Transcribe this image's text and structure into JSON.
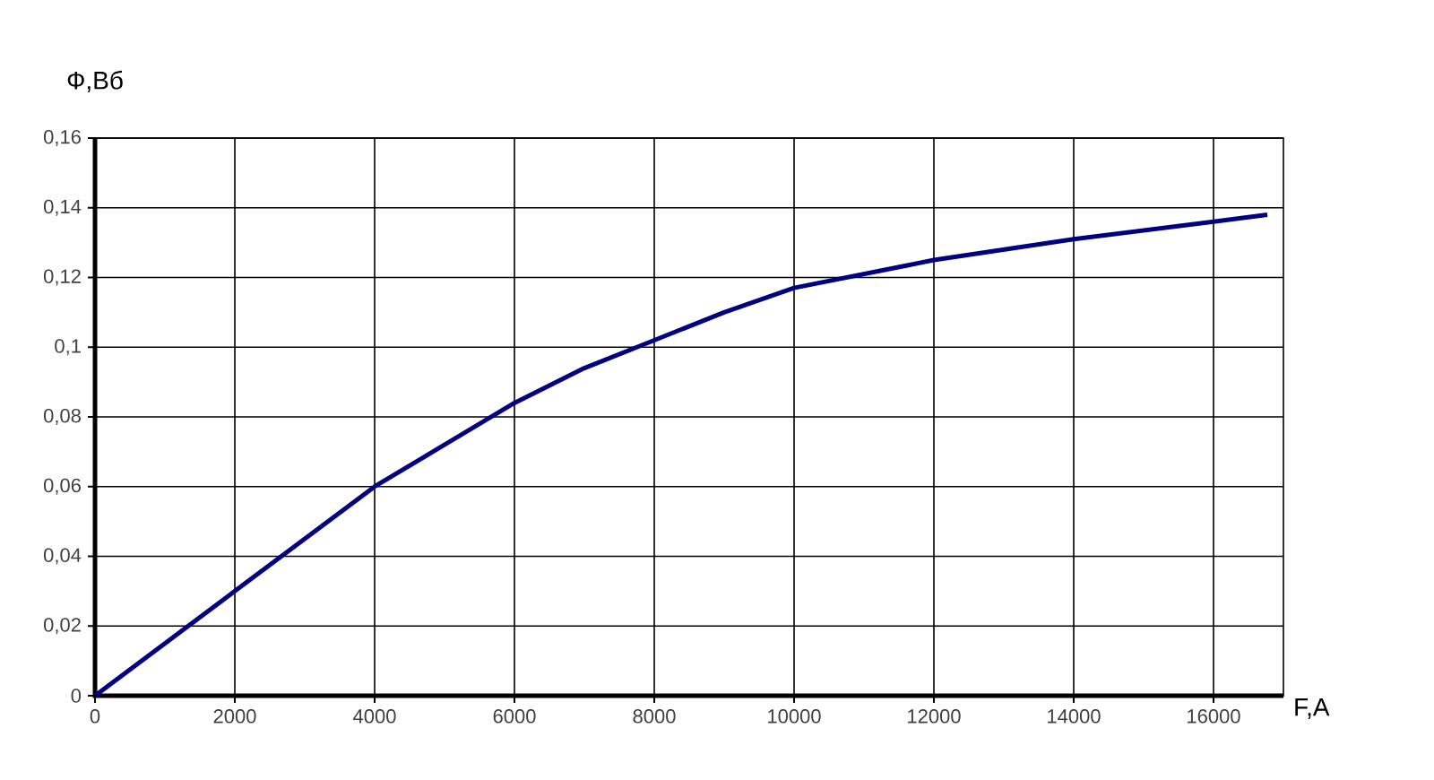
{
  "chart_data": {
    "type": "line",
    "xlabel": "F,A",
    "ylabel": "Ф,Вб",
    "x": [
      0,
      2000,
      4000,
      6000,
      7000,
      8000,
      9000,
      10000,
      11000,
      12000,
      14000,
      16000,
      16770
    ],
    "series": [
      {
        "color": "#000080",
        "values": [
          0,
          0.03,
          0.06,
          0.084,
          0.094,
          0.102,
          0.11,
          0.117,
          0.121,
          0.125,
          0.131,
          0.136,
          0.138
        ]
      }
    ],
    "xlim": [
      0,
      17000
    ],
    "xticks": [
      0,
      2000,
      4000,
      6000,
      8000,
      10000,
      12000,
      14000,
      16000
    ],
    "ylim": [
      0,
      0.16
    ],
    "yticks": [
      0,
      {
        "value": 0.02,
        "label": "0,02"
      },
      {
        "value": 0.04,
        "label": "0,04"
      },
      {
        "value": 0.06,
        "label": "0,06"
      },
      {
        "value": 0.08,
        "label": "0,08"
      },
      {
        "value": 0.1,
        "label": "0,1"
      },
      {
        "value": 0.12,
        "label": "0,12"
      },
      {
        "value": 0.14,
        "label": "0,14"
      },
      {
        "value": 0.16,
        "label": "0,16"
      }
    ],
    "grid": true,
    "marker": "none",
    "line_style": "solid"
  }
}
